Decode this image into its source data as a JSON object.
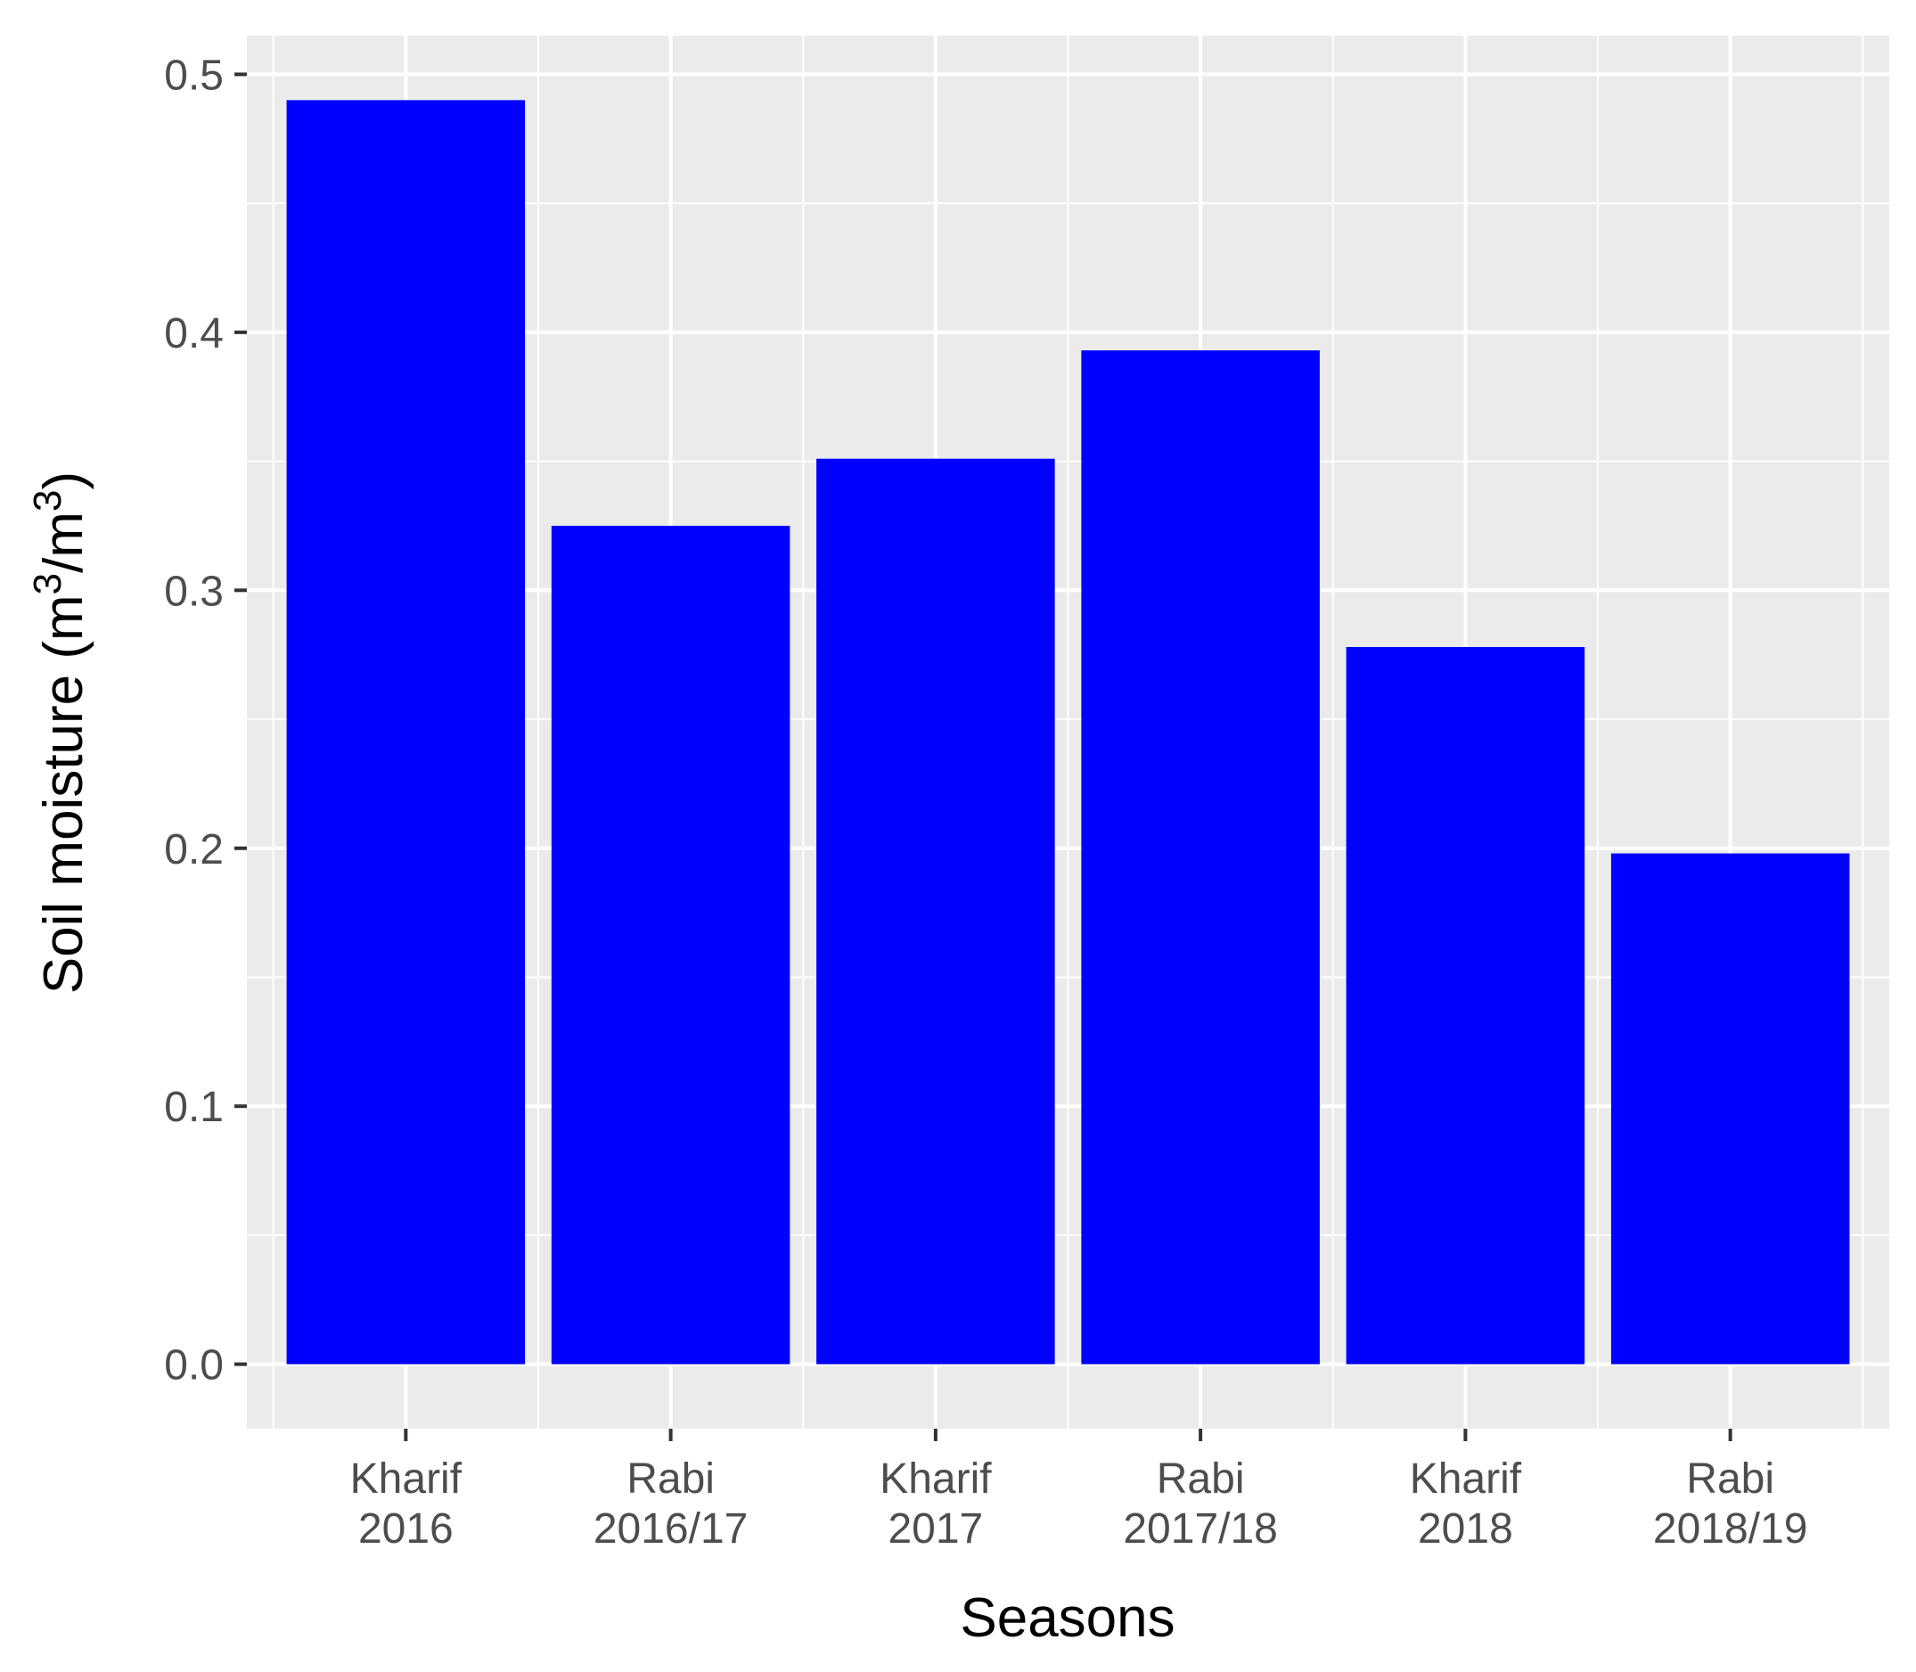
{
  "chart_data": {
    "type": "bar",
    "title": "",
    "xlabel": "Seasons",
    "ylabel": {
      "prefix": "Soil moisture (m",
      "sup1": "3",
      "middle": "/m",
      "sup2": "3",
      "suffix": ")"
    },
    "categories": [
      [
        "Kharif",
        "2016"
      ],
      [
        "Rabi",
        "2016/17"
      ],
      [
        "Kharif",
        "2017"
      ],
      [
        "Rabi",
        "2017/18"
      ],
      [
        "Kharif",
        "2018"
      ],
      [
        "Rabi",
        "2018/19"
      ]
    ],
    "values": [
      0.49,
      0.325,
      0.351,
      0.393,
      0.278,
      0.198
    ],
    "ylim": [
      -0.025,
      0.515
    ],
    "yticks": [
      0.0,
      0.1,
      0.2,
      0.3,
      0.4,
      0.5
    ],
    "ytick_labels": [
      "0.0",
      "0.1",
      "0.2",
      "0.3",
      "0.4",
      "0.5"
    ],
    "bar_color": "#0000ff",
    "panel_background": "#ebebeb",
    "grid_color": "#ffffff",
    "grid": true,
    "legend": "none"
  }
}
